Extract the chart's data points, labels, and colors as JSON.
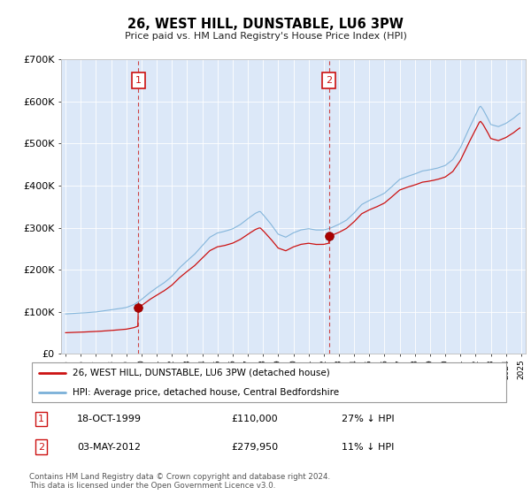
{
  "title": "26, WEST HILL, DUNSTABLE, LU6 3PW",
  "subtitle": "Price paid vs. HM Land Registry's House Price Index (HPI)",
  "plot_bg": "#dce8f8",
  "legend_line1": "26, WEST HILL, DUNSTABLE, LU6 3PW (detached house)",
  "legend_line2": "HPI: Average price, detached house, Central Bedfordshire",
  "sale1_date": "18-OCT-1999",
  "sale1_price": "£110,000",
  "sale1_hpi": "27% ↓ HPI",
  "sale1_year": 1999.79,
  "sale1_value": 110000,
  "sale2_date": "03-MAY-2012",
  "sale2_price": "£279,950",
  "sale2_hpi": "11% ↓ HPI",
  "sale2_year": 2012.34,
  "sale2_value": 279950,
  "footnote": "Contains HM Land Registry data © Crown copyright and database right 2024.\nThis data is licensed under the Open Government Licence v3.0.",
  "ylim": [
    0,
    700000
  ],
  "xlim": [
    1994.7,
    2025.3
  ]
}
